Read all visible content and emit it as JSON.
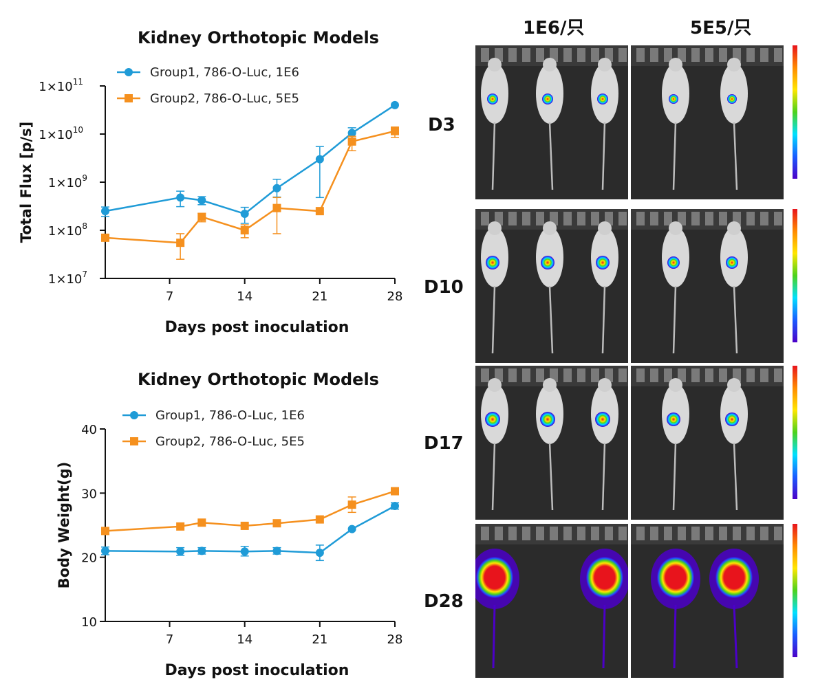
{
  "chart_data": [
    {
      "type": "line",
      "title": "Kidney Orthotopic Models",
      "xlabel": "Days post inoculation",
      "ylabel": "Total Flux [p/s]",
      "yscale": "log",
      "ylim": [
        10000000,
        100000000000
      ],
      "xlim": [
        1,
        28
      ],
      "x_ticks": [
        7,
        14,
        21,
        28
      ],
      "y_ticks": [
        {
          "value": 10000000,
          "label": "1×10",
          "exp": "7"
        },
        {
          "value": 100000000,
          "label": "1×10",
          "exp": "8"
        },
        {
          "value": 1000000000,
          "label": "1×10",
          "exp": "9"
        },
        {
          "value": 10000000000,
          "label": "1×10",
          "exp": "10"
        },
        {
          "value": 100000000000,
          "label": "1×10",
          "exp": "11"
        }
      ],
      "legend_position": "top-left",
      "series": [
        {
          "name": "Group1, 786-O-Luc, 1E6",
          "color": "#1f9bd7",
          "marker": "circle",
          "x": [
            1,
            8,
            10,
            14,
            17,
            21,
            24,
            28
          ],
          "y": [
            250000000,
            480000000,
            420000000,
            220000000,
            750000000,
            3000000000,
            10500000000,
            40000000000
          ],
          "err_low": [
            195000000,
            310000000,
            340000000,
            140000000,
            490000000,
            480000000,
            8000000000,
            40000000000
          ],
          "err_high": [
            305000000,
            650000000,
            500000000,
            300000000,
            1150000000,
            5500000000,
            13500000000,
            40000000000
          ]
        },
        {
          "name": "Group2, 786-O-Luc, 5E5",
          "color": "#f5901e",
          "marker": "square",
          "x": [
            1,
            8,
            10,
            14,
            17,
            21,
            24,
            28
          ],
          "y": [
            70000000,
            55000000,
            190000000,
            100000000,
            290000000,
            250000000,
            7000000000,
            11500000000
          ],
          "err_low": [
            70000000,
            25000000,
            150000000,
            70000000,
            85000000,
            250000000,
            4500000000,
            8500000000
          ],
          "err_high": [
            70000000,
            85000000,
            225000000,
            130000000,
            480000000,
            250000000,
            9000000000,
            14000000000
          ]
        }
      ]
    },
    {
      "type": "line",
      "title": "Kidney Orthotopic Models",
      "xlabel": "Days post inoculation",
      "ylabel": "Body Weight(g)",
      "yscale": "linear",
      "ylim": [
        10,
        40
      ],
      "xlim": [
        1,
        28
      ],
      "x_ticks": [
        7,
        14,
        21,
        28
      ],
      "y_ticks": [
        {
          "value": 10,
          "label": "10"
        },
        {
          "value": 20,
          "label": "20"
        },
        {
          "value": 30,
          "label": "30"
        },
        {
          "value": 40,
          "label": "40"
        }
      ],
      "legend_position": "top-left",
      "series": [
        {
          "name": "Group1, 786-O-Luc, 1E6",
          "color": "#1f9bd7",
          "marker": "circle",
          "x": [
            1,
            8,
            10,
            14,
            17,
            21,
            24,
            28
          ],
          "y": [
            21.0,
            20.9,
            21.0,
            20.9,
            21.0,
            20.7,
            24.4,
            28.0
          ],
          "err_low": [
            20.4,
            20.3,
            20.5,
            20.2,
            20.5,
            19.5,
            24.4,
            27.5
          ],
          "err_high": [
            21.6,
            21.5,
            21.5,
            21.7,
            21.5,
            21.9,
            24.4,
            28.5
          ]
        },
        {
          "name": "Group2, 786-O-Luc, 5E5",
          "color": "#f5901e",
          "marker": "square",
          "x": [
            1,
            8,
            10,
            14,
            17,
            21,
            24,
            28
          ],
          "y": [
            24.1,
            24.8,
            25.4,
            24.9,
            25.3,
            25.9,
            28.2,
            30.3
          ],
          "err_low": [
            24.1,
            24.8,
            25.4,
            24.9,
            25.3,
            25.9,
            27.0,
            30.3
          ],
          "err_high": [
            24.1,
            24.8,
            25.4,
            24.9,
            25.3,
            25.9,
            29.4,
            30.3
          ]
        }
      ]
    }
  ],
  "imaging": {
    "columns": [
      "1E6/只",
      "5E5/只"
    ],
    "rows": [
      "D3",
      "D10",
      "D17",
      "D28"
    ],
    "scale_colors": [
      "#e8141c",
      "#ff8a00",
      "#ffe600",
      "#4cd21c",
      "#00e0ff",
      "#1a5cff",
      "#4b00c8"
    ],
    "mouse_counts": [
      3,
      2
    ]
  }
}
